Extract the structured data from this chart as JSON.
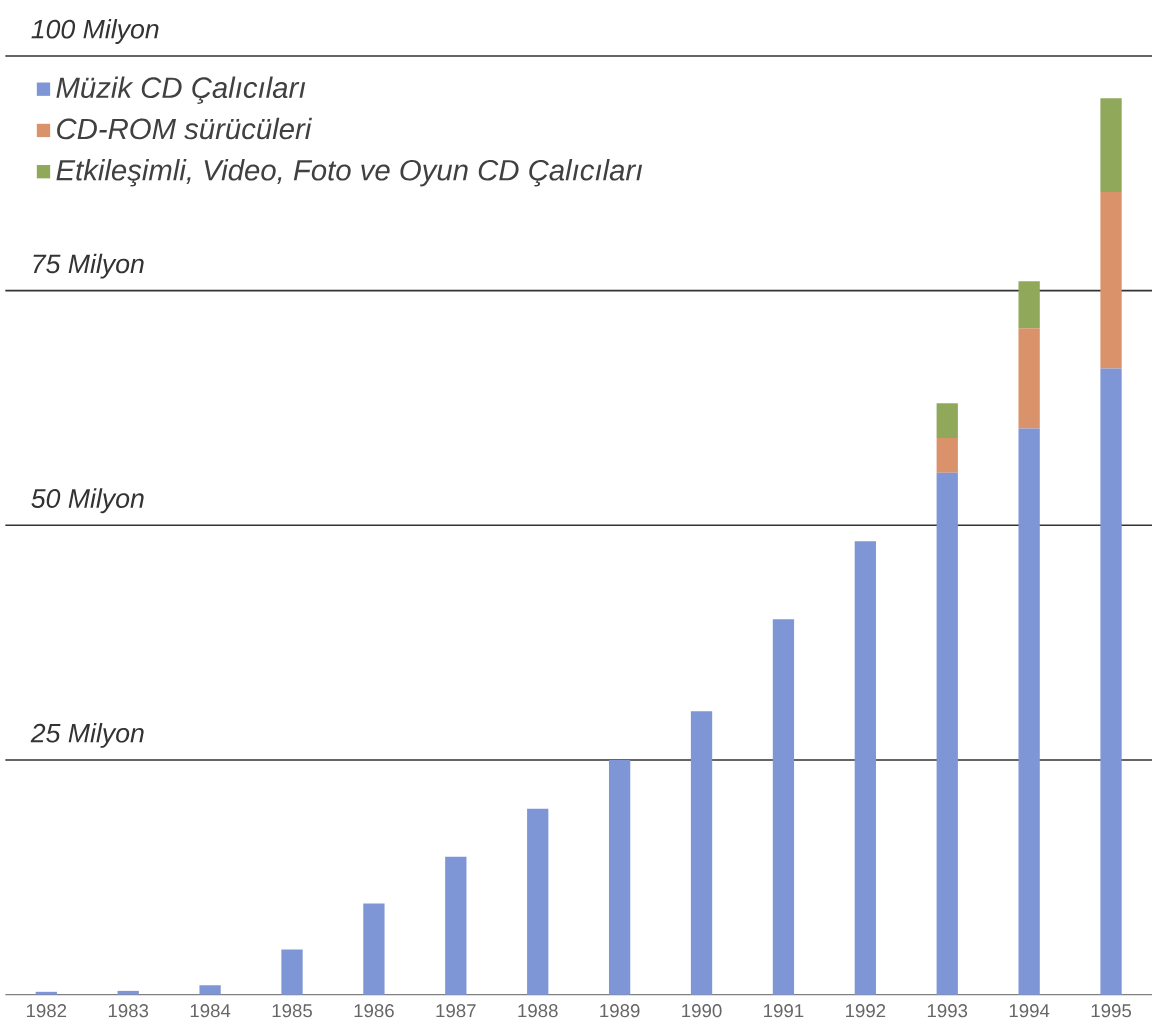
{
  "chart_data": {
    "type": "bar",
    "stacked": true,
    "categories": [
      "1982",
      "1983",
      "1984",
      "1985",
      "1986",
      "1987",
      "1988",
      "1989",
      "1990",
      "1991",
      "1992",
      "1993",
      "1994",
      "1995"
    ],
    "series": [
      {
        "name": "Müzik CD Çalıcıları",
        "color": "#7f96d6",
        "values": [
          0.3,
          0.4,
          1,
          4.8,
          9.7,
          14.7,
          19.8,
          25,
          30.2,
          40,
          48.3,
          55.6,
          60.3,
          66.7
        ]
      },
      {
        "name": "CD-ROM sürücüleri",
        "color": "#d9926a",
        "values": [
          null,
          null,
          null,
          null,
          null,
          null,
          null,
          null,
          null,
          null,
          null,
          3.7,
          10.7,
          18.8
        ]
      },
      {
        "name": "Etkileşimli, Video, Foto ve Oyun CD Çalıcıları",
        "color": "#8fa85a",
        "values": [
          null,
          null,
          null,
          null,
          null,
          null,
          null,
          null,
          null,
          null,
          null,
          3.7,
          5,
          10
        ]
      }
    ],
    "ylim": [
      0,
      100
    ],
    "yticks": [
      {
        "value": 25,
        "label": "25 Milyon"
      },
      {
        "value": 50,
        "label": "50 Milyon"
      },
      {
        "value": 75,
        "label": "75 Milyon"
      },
      {
        "value": 100,
        "label": "100 Milyon"
      }
    ],
    "grid": "y",
    "legend": "top left"
  }
}
